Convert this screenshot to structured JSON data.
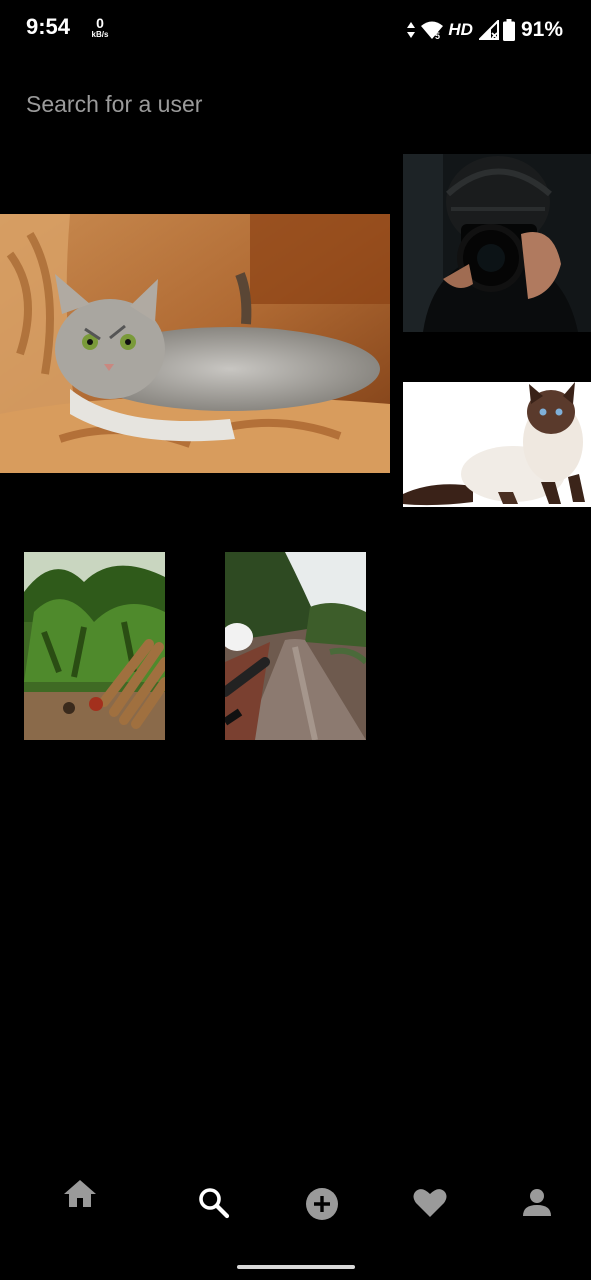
{
  "status_bar": {
    "time": "9:54",
    "net_speed_value": "0",
    "net_speed_unit": "kB/s",
    "hd_label": "HD",
    "battery": "91%"
  },
  "search": {
    "placeholder": "Search for a user",
    "value": ""
  },
  "grid": {
    "images": [
      {
        "name": "cat-on-sofa"
      },
      {
        "name": "photographer-with-camera"
      },
      {
        "name": "himalayan-cat"
      },
      {
        "name": "garden-with-logs"
      },
      {
        "name": "wet-road"
      }
    ]
  },
  "bottom_nav": {
    "items": [
      {
        "icon": "home-icon",
        "active": false
      },
      {
        "icon": "search-icon",
        "active": true
      },
      {
        "icon": "add-circle-icon",
        "active": false
      },
      {
        "icon": "heart-icon",
        "active": false
      },
      {
        "icon": "person-icon",
        "active": false
      }
    ]
  },
  "colors": {
    "background": "#000000",
    "active_icon": "#ffffff",
    "inactive_icon": "#9a9a9a",
    "placeholder": "#9b9b9b"
  }
}
